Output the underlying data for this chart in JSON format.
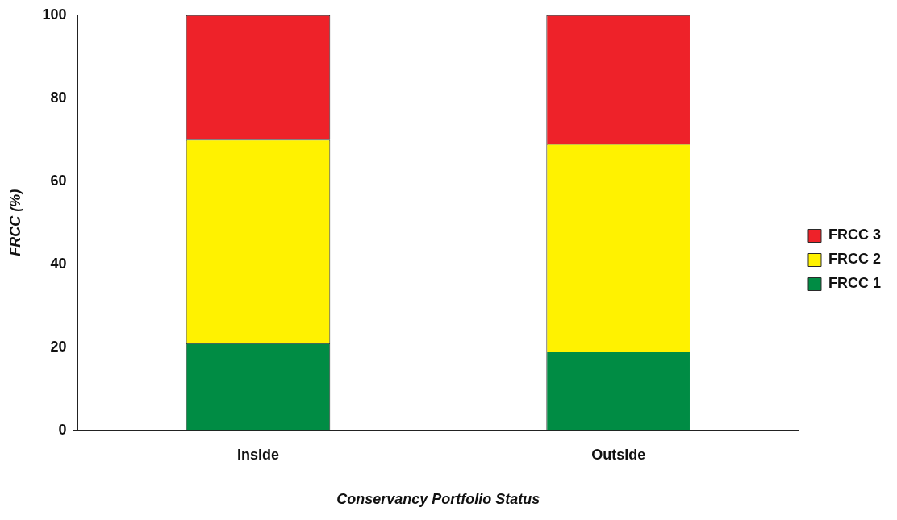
{
  "chart_data": {
    "type": "bar",
    "stacked": true,
    "xlabel": "Conservancy Portfolio Status",
    "ylabel": "FRCC (%)",
    "categories": [
      "Inside",
      "Outside"
    ],
    "series": [
      {
        "name": "FRCC 1",
        "color": "#008c44",
        "values": [
          21,
          19
        ]
      },
      {
        "name": "FRCC 2",
        "color": "#fff200",
        "values": [
          49,
          50
        ]
      },
      {
        "name": "FRCC 3",
        "color": "#ee2229",
        "values": [
          30,
          31
        ]
      }
    ],
    "ylim": [
      0,
      100
    ],
    "yticks": [
      0,
      20,
      40,
      60,
      80,
      100
    ],
    "grid": "y",
    "legend": "right"
  }
}
